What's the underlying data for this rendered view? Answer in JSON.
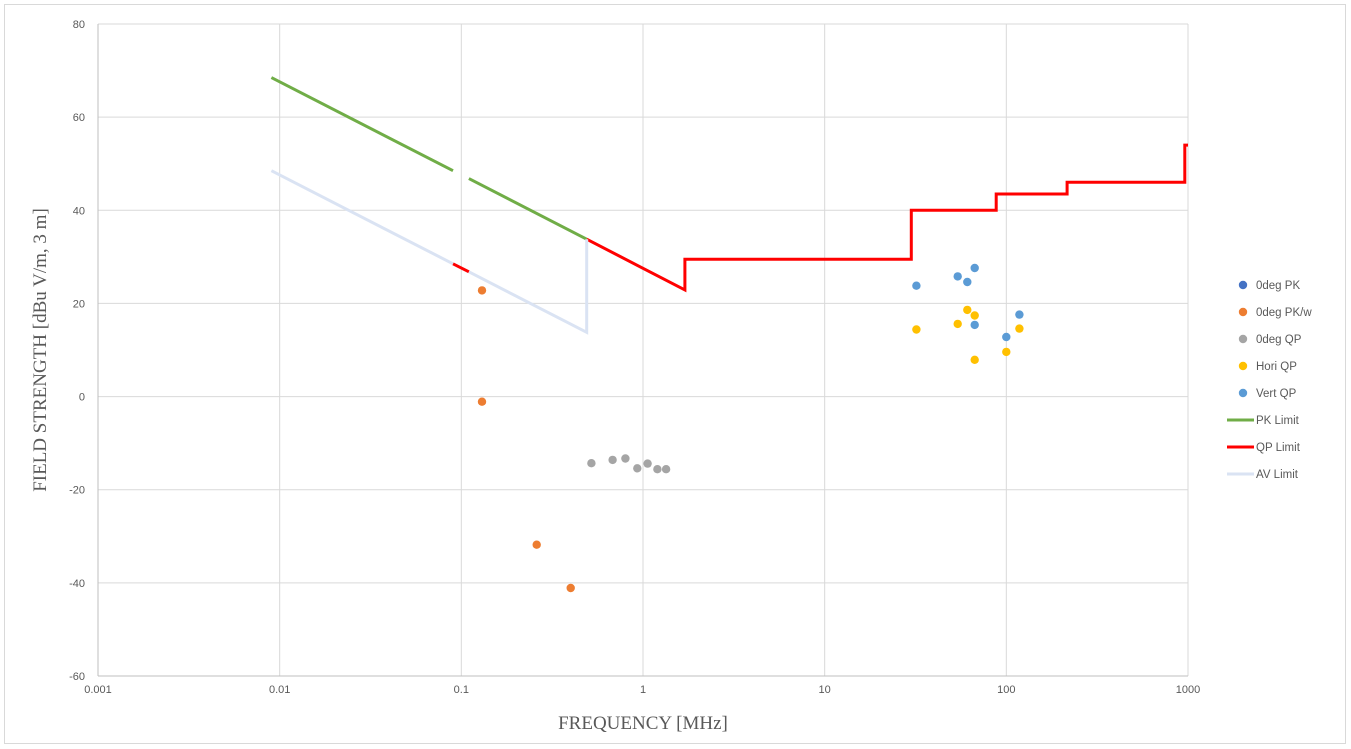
{
  "chart_data": {
    "type": "scatter",
    "title": "",
    "xlabel": "FREQUENCY [MHz]",
    "ylabel": "FIELD STRENGTH  [dBu V/m, 3 m]",
    "xscale": "log",
    "xlim": [
      0.001,
      1000
    ],
    "ylim": [
      -60,
      80
    ],
    "x_ticks": [
      0.001,
      0.01,
      0.1,
      1,
      10,
      100,
      1000
    ],
    "x_tick_labels": [
      "0.001",
      "0.01",
      "0.1",
      "1",
      "10",
      "100",
      "1000"
    ],
    "y_ticks": [
      -60,
      -40,
      -20,
      0,
      20,
      40,
      60,
      80
    ],
    "y_tick_labels": [
      "-60",
      "-40",
      "-20",
      "0",
      "20",
      "40",
      "60",
      "80"
    ],
    "grid": true,
    "legend_position": "right",
    "series": [
      {
        "name": "0deg PK",
        "kind": "scatter",
        "color": "#4472c4",
        "points": []
      },
      {
        "name": "0deg PK/w",
        "kind": "scatter",
        "color": "#ed7d31",
        "points": [
          [
            0.13,
            22.8
          ],
          [
            0.13,
            -1.1
          ],
          [
            0.26,
            -31.8
          ],
          [
            0.4,
            -41.1
          ]
        ]
      },
      {
        "name": "0deg QP",
        "kind": "scatter",
        "color": "#a5a5a5",
        "points": [
          [
            0.52,
            -14.3
          ],
          [
            0.68,
            -13.6
          ],
          [
            0.8,
            -13.3
          ],
          [
            0.93,
            -15.4
          ],
          [
            1.06,
            -14.4
          ],
          [
            1.2,
            -15.6
          ],
          [
            1.34,
            -15.6
          ]
        ]
      },
      {
        "name": "Hori QP",
        "kind": "scatter",
        "color": "#ffc000",
        "points": [
          [
            32,
            14.4
          ],
          [
            54,
            15.6
          ],
          [
            61,
            18.6
          ],
          [
            67,
            17.4
          ],
          [
            67,
            7.9
          ],
          [
            100,
            9.6
          ],
          [
            118,
            14.6
          ]
        ]
      },
      {
        "name": "Vert QP",
        "kind": "scatter",
        "color": "#5b9bd5",
        "points": [
          [
            32,
            23.8
          ],
          [
            54,
            25.8
          ],
          [
            61,
            24.6
          ],
          [
            67,
            27.6
          ],
          [
            67,
            15.4
          ],
          [
            100,
            12.8
          ],
          [
            118,
            17.6
          ]
        ]
      },
      {
        "name": "PK Limit",
        "kind": "line",
        "color": "#70ad47",
        "segments": [
          [
            [
              0.009,
              68.5
            ],
            [
              0.09,
              48.5
            ]
          ],
          [
            [
              0.11,
              46.8
            ],
            [
              0.49,
              33.8
            ]
          ]
        ]
      },
      {
        "name": "QP Limit",
        "kind": "line",
        "color": "#ff0000",
        "segments": [
          [
            [
              0.09,
              28.5
            ],
            [
              0.11,
              26.8
            ]
          ],
          [
            [
              0.49,
              33.8
            ],
            [
              1.7,
              22.9
            ],
            [
              1.7,
              29.5
            ],
            [
              30,
              29.5
            ],
            [
              30,
              40
            ],
            [
              88,
              40
            ],
            [
              88,
              43.5
            ],
            [
              216,
              43.5
            ],
            [
              216,
              46
            ],
            [
              960,
              46
            ],
            [
              960,
              54
            ],
            [
              1000,
              54
            ]
          ]
        ]
      },
      {
        "name": "AV Limit",
        "kind": "line",
        "color": "#dae3f3",
        "segments": [
          [
            [
              0.009,
              48.5
            ],
            [
              0.09,
              28.5
            ]
          ],
          [
            [
              0.11,
              26.8
            ],
            [
              0.49,
              13.8
            ],
            [
              0.49,
              33.8
            ]
          ]
        ]
      }
    ]
  }
}
